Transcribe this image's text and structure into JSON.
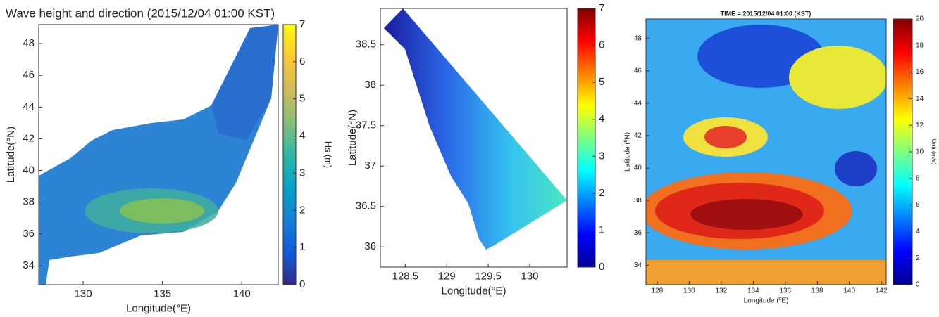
{
  "chart_data": [
    {
      "type": "contour",
      "title": "Wave height and direction (2015/12/04 01:00 KST)",
      "xlabel": "Longitude(°E)",
      "ylabel": "Latitude(°N)",
      "xlim": [
        127.2,
        142.3
      ],
      "xticks": [
        130,
        135,
        140
      ],
      "ylim": [
        32.8,
        49.2
      ],
      "yticks": [
        34,
        36,
        38,
        40,
        42,
        44,
        46,
        48
      ],
      "colorbar": {
        "label": "Hs (m)",
        "lim": [
          0,
          7
        ],
        "ticks": [
          0,
          1,
          2,
          3,
          4,
          5,
          6,
          7
        ],
        "colormap": "parula"
      }
    },
    {
      "type": "contour",
      "xlabel": "Longitude(°E)",
      "ylabel": "Latitude(°N)",
      "xlim": [
        128.2,
        130.45
      ],
      "xticks": [
        128.5,
        129,
        129.5,
        130
      ],
      "ylim": [
        35.75,
        38.95
      ],
      "yticks": [
        36,
        36.5,
        37,
        37.5,
        38,
        38.5
      ],
      "colorbar": {
        "lim": [
          0,
          7
        ],
        "ticks": [
          0,
          1,
          2,
          3,
          4,
          5,
          6,
          7
        ],
        "colormap": "jet"
      }
    },
    {
      "type": "contour",
      "title": "TIME = 2015/12/04 01:00 (KST)",
      "xlabel": "Longitude (ºE)",
      "ylabel": "Latitude (ºN)",
      "xlim": [
        127.3,
        142.3
      ],
      "xticks": [
        128,
        130,
        132,
        134,
        136,
        138,
        140,
        142
      ],
      "ylim": [
        32.8,
        49.2
      ],
      "yticks": [
        34,
        36,
        38,
        40,
        42,
        44,
        46,
        48
      ],
      "colorbar": {
        "label": "Unit (m/s)",
        "lim": [
          0,
          20
        ],
        "ticks": [
          0,
          2,
          4,
          6,
          8,
          10,
          12,
          14,
          16,
          18,
          20
        ],
        "colormap": "jet"
      }
    }
  ]
}
